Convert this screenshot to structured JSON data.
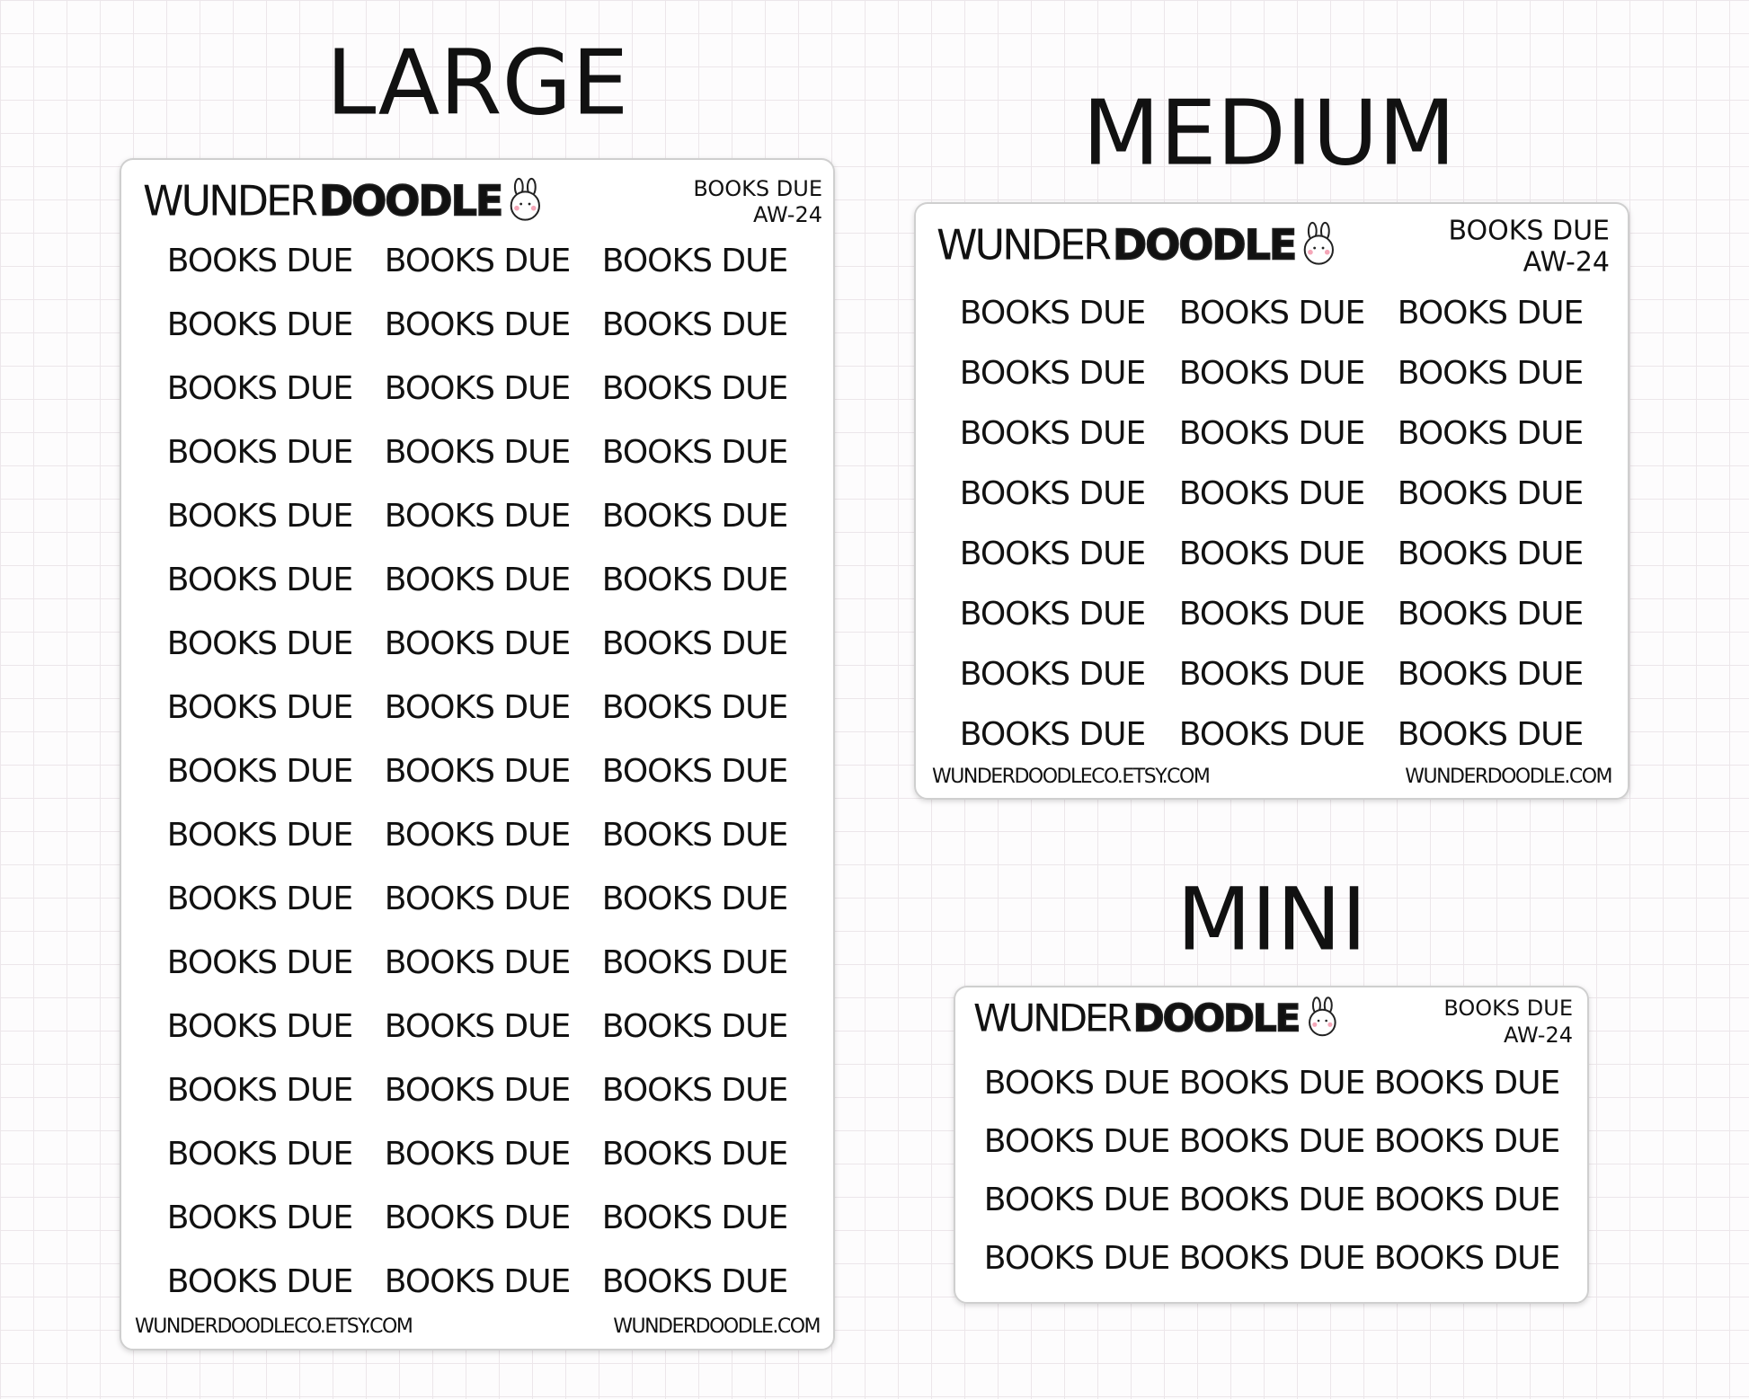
{
  "sheets": [
    {
      "heading": "LARGE",
      "brand": {
        "name": "WUNDER",
        "highlight": "DOODLE"
      },
      "label": "BOOKS DUE",
      "code": "AW-24",
      "stickers": [
        [
          "BOOKS DUE",
          "BOOKS DUE",
          "BOOKS DUE"
        ],
        [
          "BOOKS DUE",
          "BOOKS DUE",
          "BOOKS DUE"
        ],
        [
          "BOOKS DUE",
          "BOOKS DUE",
          "BOOKS DUE"
        ],
        [
          "BOOKS DUE",
          "BOOKS DUE",
          "BOOKS DUE"
        ],
        [
          "BOOKS DUE",
          "BOOKS DUE",
          "BOOKS DUE"
        ],
        [
          "BOOKS DUE",
          "BOOKS DUE",
          "BOOKS DUE"
        ],
        [
          "BOOKS DUE",
          "BOOKS DUE",
          "BOOKS DUE"
        ],
        [
          "BOOKS DUE",
          "BOOKS DUE",
          "BOOKS DUE"
        ],
        [
          "BOOKS DUE",
          "BOOKS DUE",
          "BOOKS DUE"
        ],
        [
          "BOOKS DUE",
          "BOOKS DUE",
          "BOOKS DUE"
        ],
        [
          "BOOKS DUE",
          "BOOKS DUE",
          "BOOKS DUE"
        ],
        [
          "BOOKS DUE",
          "BOOKS DUE",
          "BOOKS DUE"
        ],
        [
          "BOOKS DUE",
          "BOOKS DUE",
          "BOOKS DUE"
        ],
        [
          "BOOKS DUE",
          "BOOKS DUE",
          "BOOKS DUE"
        ],
        [
          "BOOKS DUE",
          "BOOKS DUE",
          "BOOKS DUE"
        ],
        [
          "BOOKS DUE",
          "BOOKS DUE",
          "BOOKS DUE"
        ],
        [
          "BOOKS DUE",
          "BOOKS DUE",
          "BOOKS DUE"
        ]
      ],
      "footer": {
        "left": "WUNDERDOODLECO.ETSY.COM",
        "right": "WUNDERDOODLE.COM"
      }
    },
    {
      "heading": "MEDIUM",
      "brand": {
        "name": "WUNDER",
        "highlight": "DOODLE"
      },
      "label": "BOOKS DUE",
      "code": "AW-24",
      "stickers": [
        [
          "BOOKS DUE",
          "BOOKS DUE",
          "BOOKS DUE"
        ],
        [
          "BOOKS DUE",
          "BOOKS DUE",
          "BOOKS DUE"
        ],
        [
          "BOOKS DUE",
          "BOOKS DUE",
          "BOOKS DUE"
        ],
        [
          "BOOKS DUE",
          "BOOKS DUE",
          "BOOKS DUE"
        ],
        [
          "BOOKS DUE",
          "BOOKS DUE",
          "BOOKS DUE"
        ],
        [
          "BOOKS DUE",
          "BOOKS DUE",
          "BOOKS DUE"
        ],
        [
          "BOOKS DUE",
          "BOOKS DUE",
          "BOOKS DUE"
        ],
        [
          "BOOKS DUE",
          "BOOKS DUE",
          "BOOKS DUE"
        ]
      ],
      "footer": {
        "left": "WUNDERDOODLECO.ETSY.COM",
        "right": "WUNDERDOODLE.COM"
      }
    },
    {
      "heading": "MINI",
      "brand": {
        "name": "WUNDER",
        "highlight": "DOODLE"
      },
      "label": "BOOKS DUE",
      "code": "AW-24",
      "stickers": [
        [
          "BOOKS DUE",
          "BOOKS DUE",
          "BOOKS DUE"
        ],
        [
          "BOOKS DUE",
          "BOOKS DUE",
          "BOOKS DUE"
        ],
        [
          "BOOKS DUE",
          "BOOKS DUE",
          "BOOKS DUE"
        ],
        [
          "BOOKS DUE",
          "BOOKS DUE",
          "BOOKS DUE"
        ]
      ]
    }
  ]
}
